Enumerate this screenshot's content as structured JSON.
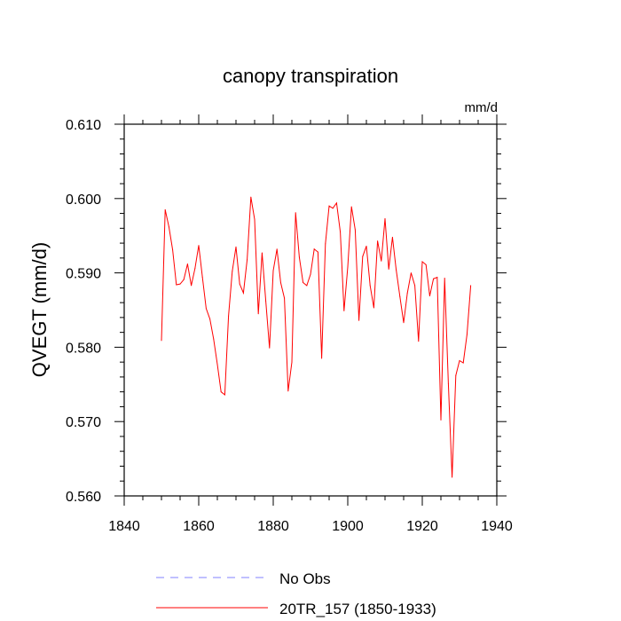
{
  "chart_data": {
    "type": "line",
    "title": "canopy transpiration",
    "units": "mm/d",
    "ylabel": "QVEGT  (mm/d)",
    "xlabel": "",
    "xlim": [
      1840,
      1940
    ],
    "ylim": [
      0.56,
      0.61
    ],
    "xticks": [
      1840,
      1860,
      1880,
      1900,
      1920,
      1940
    ],
    "yticks": [
      "0.560",
      "0.570",
      "0.580",
      "0.590",
      "0.600",
      "0.610"
    ],
    "ytick_values": [
      0.56,
      0.57,
      0.58,
      0.59,
      0.6,
      0.61
    ],
    "series": [
      {
        "name": "20TR_157 (1850-1933)",
        "color": "#ff0000",
        "x": [
          1850,
          1851,
          1852,
          1853,
          1854,
          1855,
          1856,
          1857,
          1858,
          1859,
          1860,
          1861,
          1862,
          1863,
          1864,
          1865,
          1866,
          1867,
          1868,
          1869,
          1870,
          1871,
          1872,
          1873,
          1874,
          1875,
          1876,
          1877,
          1878,
          1879,
          1880,
          1881,
          1882,
          1883,
          1884,
          1885,
          1886,
          1887,
          1888,
          1889,
          1890,
          1891,
          1892,
          1893,
          1894,
          1895,
          1896,
          1897,
          1898,
          1899,
          1900,
          1901,
          1902,
          1903,
          1904,
          1905,
          1906,
          1907,
          1908,
          1909,
          1910,
          1911,
          1912,
          1913,
          1914,
          1915,
          1916,
          1917,
          1918,
          1919,
          1920,
          1921,
          1922,
          1923,
          1924,
          1925,
          1926,
          1927,
          1928,
          1929,
          1930,
          1931,
          1932,
          1933
        ],
        "values": [
          0.5809,
          0.5985,
          0.5962,
          0.5931,
          0.5884,
          0.5885,
          0.5891,
          0.5912,
          0.5883,
          0.5906,
          0.5937,
          0.5894,
          0.5852,
          0.5838,
          0.5811,
          0.5777,
          0.574,
          0.5736,
          0.5842,
          0.5902,
          0.5935,
          0.5885,
          0.5873,
          0.5918,
          0.6002,
          0.5972,
          0.5845,
          0.5927,
          0.5862,
          0.5799,
          0.5903,
          0.5932,
          0.5887,
          0.5866,
          0.5741,
          0.578,
          0.5981,
          0.5921,
          0.5887,
          0.5883,
          0.5898,
          0.5932,
          0.5928,
          0.5785,
          0.5939,
          0.599,
          0.5987,
          0.5994,
          0.5955,
          0.5849,
          0.5908,
          0.5989,
          0.5958,
          0.5836,
          0.5922,
          0.5936,
          0.5883,
          0.5853,
          0.5943,
          0.5916,
          0.5973,
          0.5905,
          0.5948,
          0.5904,
          0.5868,
          0.5833,
          0.5873,
          0.59,
          0.5883,
          0.5808,
          0.5915,
          0.5911,
          0.5869,
          0.5892,
          0.5894,
          0.5702,
          0.5893,
          0.5751,
          0.5625,
          0.5762,
          0.5782,
          0.5779,
          0.5817,
          0.5883
        ]
      }
    ],
    "legend": [
      {
        "label": "No Obs",
        "color": "#8080ff",
        "style": "dashed"
      },
      {
        "label": "20TR_157 (1850-1933)",
        "color": "#ff0000",
        "style": "solid"
      }
    ]
  }
}
